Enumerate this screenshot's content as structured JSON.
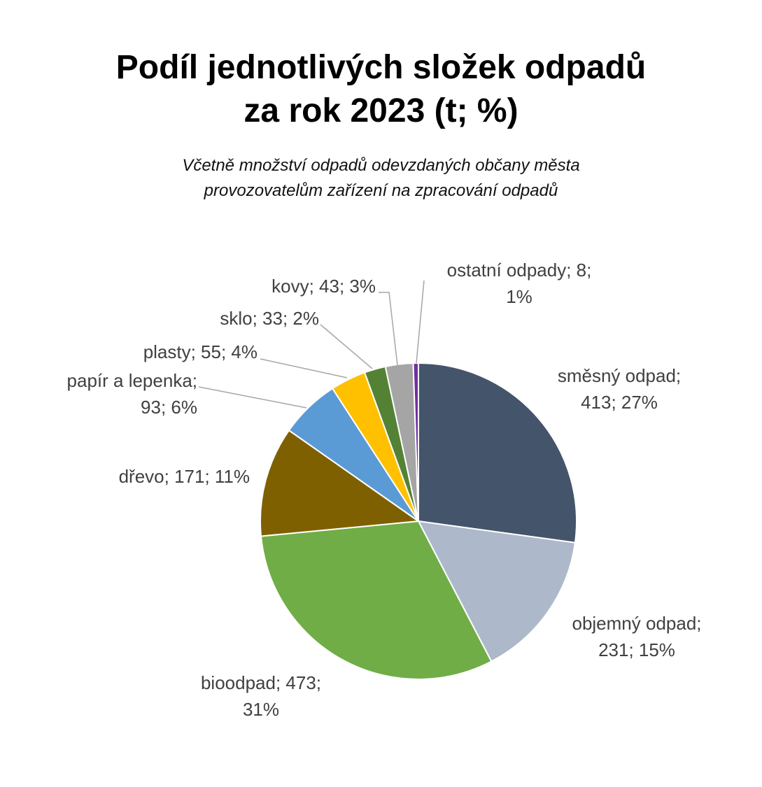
{
  "chart_data": {
    "type": "pie",
    "title": [
      "Podíl jednotlivých složek odpadů",
      "za rok 2023 (t; %)"
    ],
    "subtitle": [
      "Včetně množství odpadů odevzdaných občany města",
      "provozovatelům zařízení na zpracování odpadů"
    ],
    "slices": [
      {
        "category": "směsný odpad",
        "value": 413,
        "percent": 27,
        "color": "#44546A",
        "label_lines": [
          "směsný odpad;",
          "413; 27%"
        ]
      },
      {
        "category": "objemný odpad",
        "value": 231,
        "percent": 15,
        "color": "#ADB9CA",
        "label_lines": [
          "objemný odpad;",
          "231; 15%"
        ]
      },
      {
        "category": "bioodpad",
        "value": 473,
        "percent": 31,
        "color": "#70AD47",
        "label_lines": [
          "bioodpad; 473;",
          "31%"
        ]
      },
      {
        "category": "dřevo",
        "value": 171,
        "percent": 11,
        "color": "#7F6000",
        "label_lines": [
          "dřevo; 171; 11%"
        ]
      },
      {
        "category": "papír a lepenka",
        "value": 93,
        "percent": 6,
        "color": "#5B9BD5",
        "label_lines": [
          "papír a lepenka;",
          "93; 6%"
        ]
      },
      {
        "category": "plasty",
        "value": 55,
        "percent": 4,
        "color": "#FFC000",
        "label_lines": [
          "plasty; 55; 4%"
        ]
      },
      {
        "category": "sklo",
        "value": 33,
        "percent": 2,
        "color": "#548235",
        "label_lines": [
          "sklo; 33; 2%"
        ]
      },
      {
        "category": "kovy",
        "value": 43,
        "percent": 3,
        "color": "#A5A5A5",
        "label_lines": [
          "kovy; 43; 3%"
        ]
      },
      {
        "category": "ostatní odpady",
        "value": 8,
        "percent": 1,
        "color": "#7030A0",
        "label_lines": [
          "ostatní odpady; 8;",
          "1%"
        ]
      }
    ],
    "start_angle_deg": 0,
    "direction": "clockwise",
    "legend": "none",
    "label_text_color": "#404040",
    "leader_line_color": "#A6A6A6"
  }
}
